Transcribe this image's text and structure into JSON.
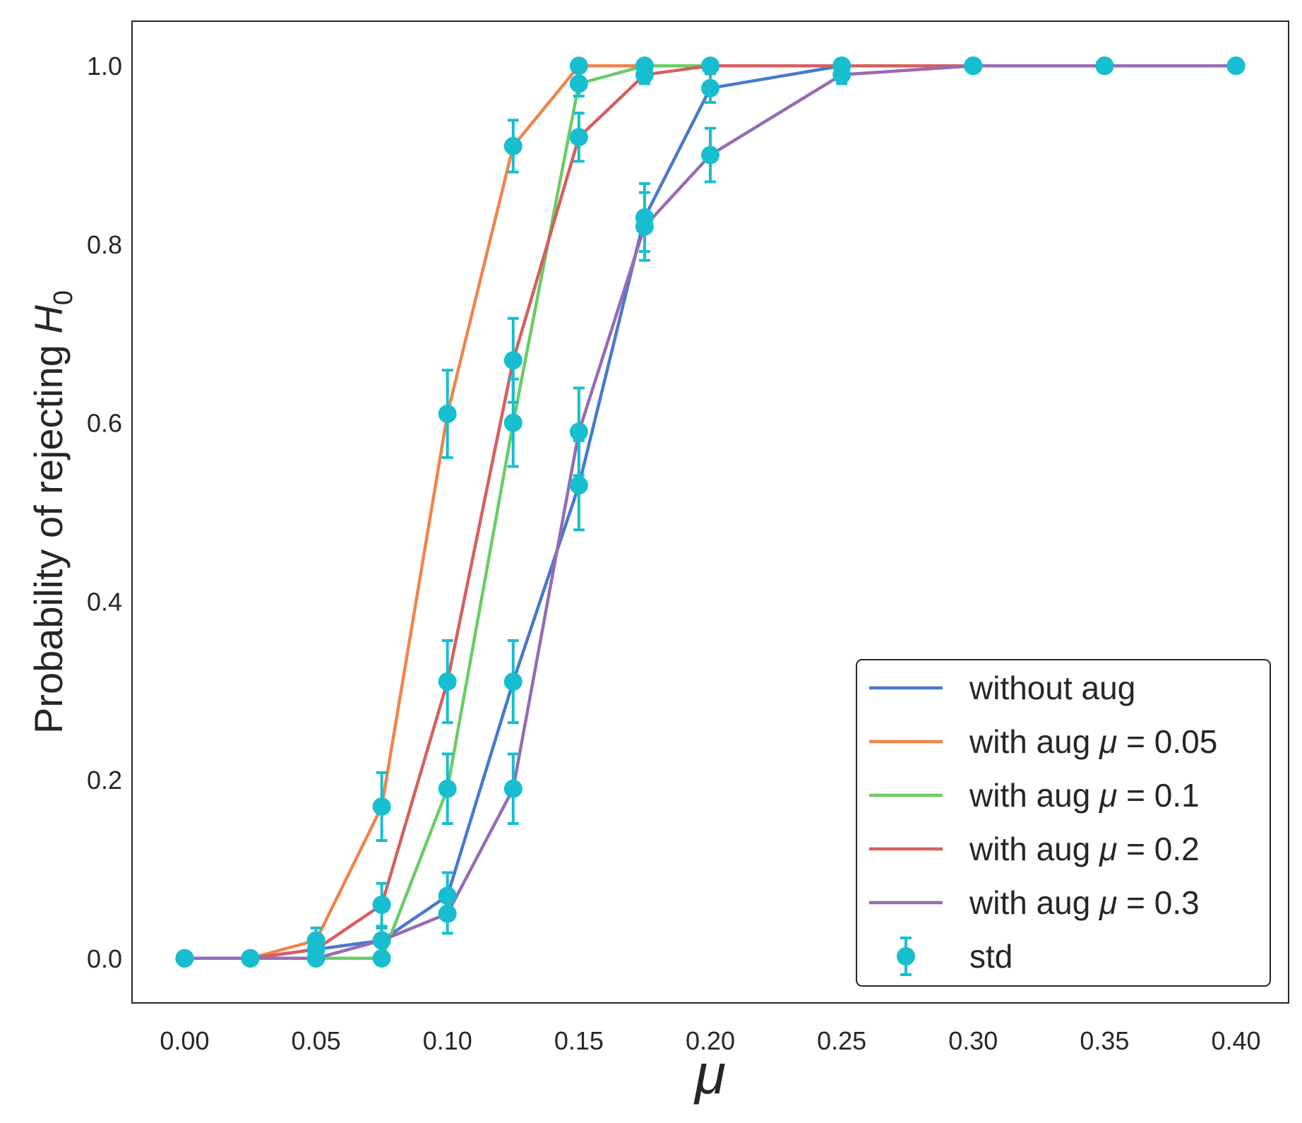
{
  "chart_data": {
    "type": "line",
    "xlabel": "μ",
    "ylabel": "Probability of rejecting ",
    "ylabel_symbol": "H",
    "ylabel_subscript": "0",
    "xlim": [
      -0.02,
      0.42
    ],
    "ylim": [
      -0.05,
      1.05
    ],
    "x_ticks": [
      "0.00",
      "0.05",
      "0.10",
      "0.15",
      "0.20",
      "0.25",
      "0.30",
      "0.35",
      "0.40"
    ],
    "y_ticks": [
      "0.0",
      "0.2",
      "0.4",
      "0.6",
      "0.8",
      "1.0"
    ],
    "grid": false,
    "legend_position": "lower-right",
    "x": [
      0.0,
      0.025,
      0.05,
      0.075,
      0.1,
      0.125,
      0.15,
      0.175,
      0.2,
      0.25,
      0.3,
      0.35,
      0.4
    ],
    "series": [
      {
        "name": "without aug",
        "legend_prefix": "without aug",
        "legend_value": "",
        "color": "#4878d0",
        "values": [
          0.0,
          0.0,
          0.01,
          0.02,
          0.07,
          0.31,
          0.53,
          0.83,
          0.975,
          1.0,
          1.0,
          1.0,
          1.0
        ],
        "std": [
          0.0,
          0.0,
          0.01,
          0.014,
          0.026,
          0.046,
          0.05,
          0.038,
          0.016,
          0.0,
          0.0,
          0.0,
          0.0
        ]
      },
      {
        "name": "with aug μ = 0.05",
        "legend_prefix": "with aug ",
        "legend_value": "0.05",
        "color": "#ee854a",
        "values": [
          0.0,
          0.0,
          0.02,
          0.17,
          0.61,
          0.91,
          1.0,
          1.0,
          1.0,
          1.0,
          1.0,
          1.0,
          1.0
        ],
        "std": [
          0.0,
          0.0,
          0.014,
          0.038,
          0.049,
          0.029,
          0.0,
          0.0,
          0.0,
          0.0,
          0.0,
          0.0,
          0.0
        ]
      },
      {
        "name": "with aug μ = 0.1",
        "legend_prefix": "with aug ",
        "legend_value": "0.1",
        "color": "#6acc64",
        "values": [
          0.0,
          0.0,
          0.0,
          0.0,
          0.19,
          0.6,
          0.98,
          1.0,
          1.0,
          1.0,
          1.0,
          1.0,
          1.0
        ],
        "std": [
          0.0,
          0.0,
          0.0,
          0.0,
          0.039,
          0.049,
          0.014,
          0.0,
          0.0,
          0.0,
          0.0,
          0.0,
          0.0
        ]
      },
      {
        "name": "with aug μ = 0.2",
        "legend_prefix": "with aug ",
        "legend_value": "0.2",
        "color": "#d65f5f",
        "values": [
          0.0,
          0.0,
          0.01,
          0.06,
          0.31,
          0.67,
          0.92,
          0.99,
          1.0,
          1.0,
          1.0,
          1.0,
          1.0
        ],
        "std": [
          0.0,
          0.0,
          0.01,
          0.024,
          0.046,
          0.047,
          0.027,
          0.01,
          0.0,
          0.0,
          0.0,
          0.0,
          0.0
        ]
      },
      {
        "name": "with aug μ = 0.3",
        "legend_prefix": "with aug ",
        "legend_value": "0.3",
        "color": "#956cb4",
        "values": [
          0.0,
          0.0,
          0.0,
          0.02,
          0.05,
          0.19,
          0.59,
          0.82,
          0.9,
          0.99,
          1.0,
          1.0,
          1.0
        ],
        "std": [
          0.0,
          0.0,
          0.0,
          0.014,
          0.022,
          0.039,
          0.049,
          0.038,
          0.03,
          0.01,
          0.0,
          0.0,
          0.0
        ]
      }
    ],
    "std_marker": {
      "name": "std",
      "color": "#17becf"
    },
    "legend_math_symbol": "μ",
    "legend_math_eq": " = "
  }
}
